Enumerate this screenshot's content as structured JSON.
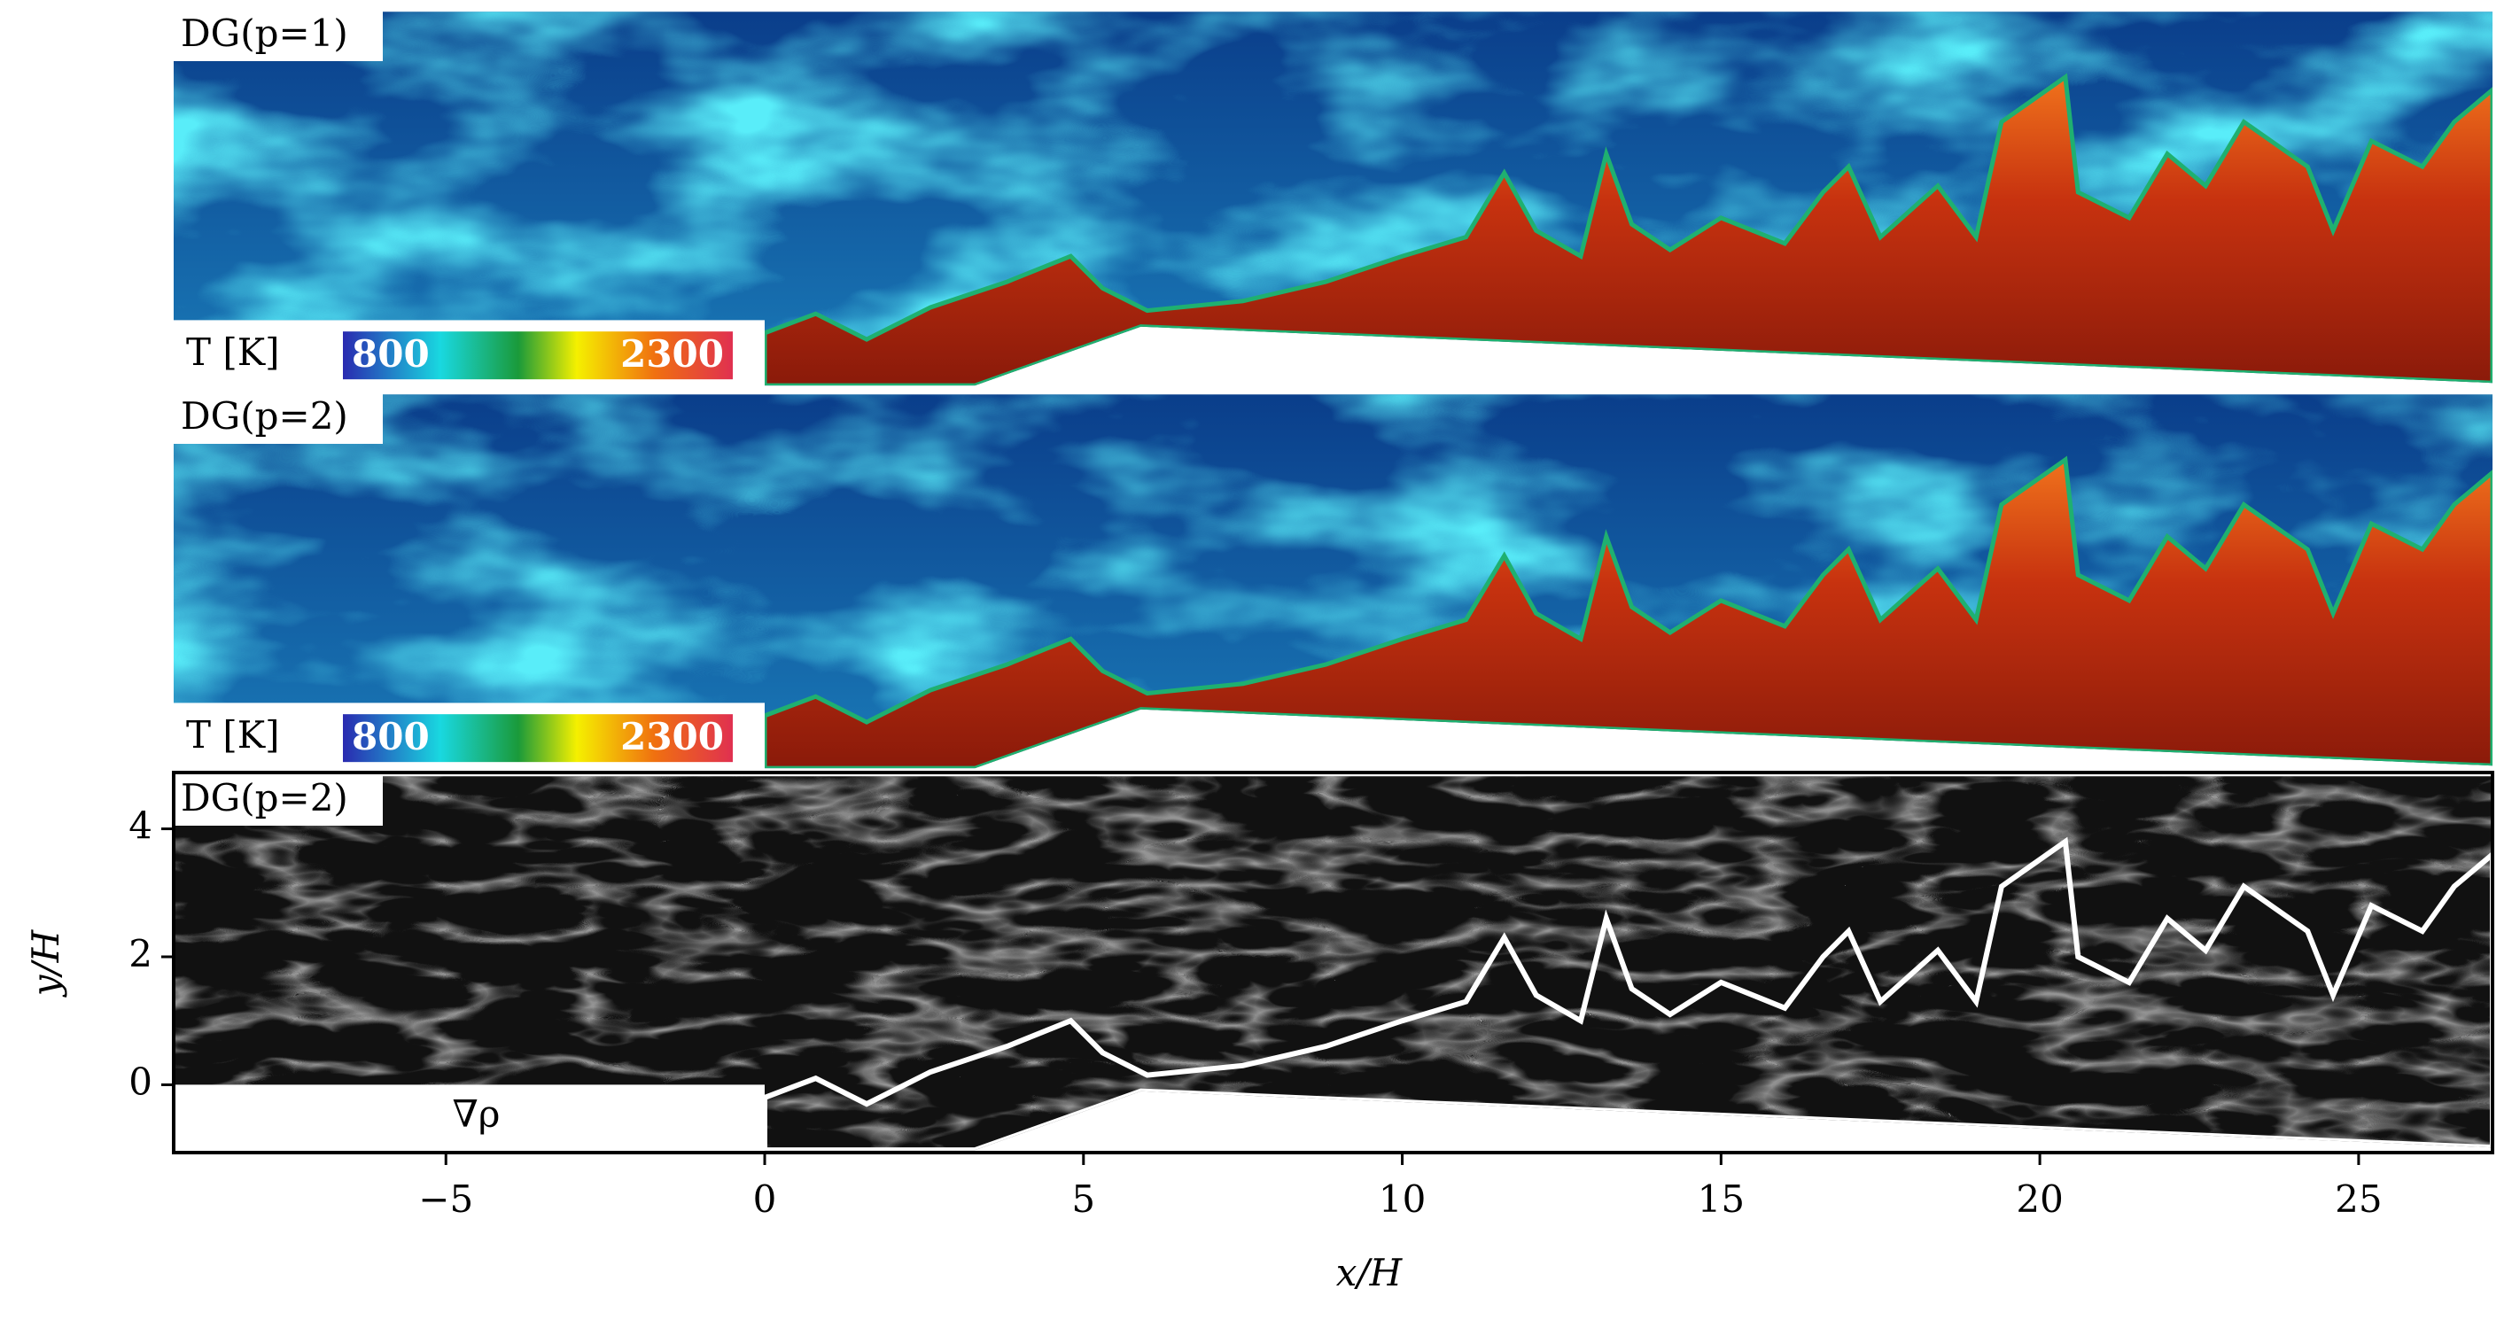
{
  "panels": [
    {
      "label": "DG(p=1)",
      "colorbar": {
        "label": "T [K]",
        "ticks": [
          800,
          2300
        ]
      }
    },
    {
      "label": "DG(p=2)",
      "colorbar": {
        "label": "T [K]",
        "ticks": [
          800,
          2300
        ]
      }
    },
    {
      "label": "DG(p=2)",
      "annotation": "∇ρ"
    }
  ],
  "axes": {
    "xlabel": "x/H",
    "ylabel": "y/H",
    "xlim": [
      -9.27,
      27.1
    ],
    "ylim": [
      -1.06,
      4.88
    ],
    "xticks": [
      {
        "value": -5,
        "label": "−5"
      },
      0,
      5,
      10,
      15,
      20,
      25
    ],
    "yticks": [
      0,
      2,
      4
    ]
  }
}
